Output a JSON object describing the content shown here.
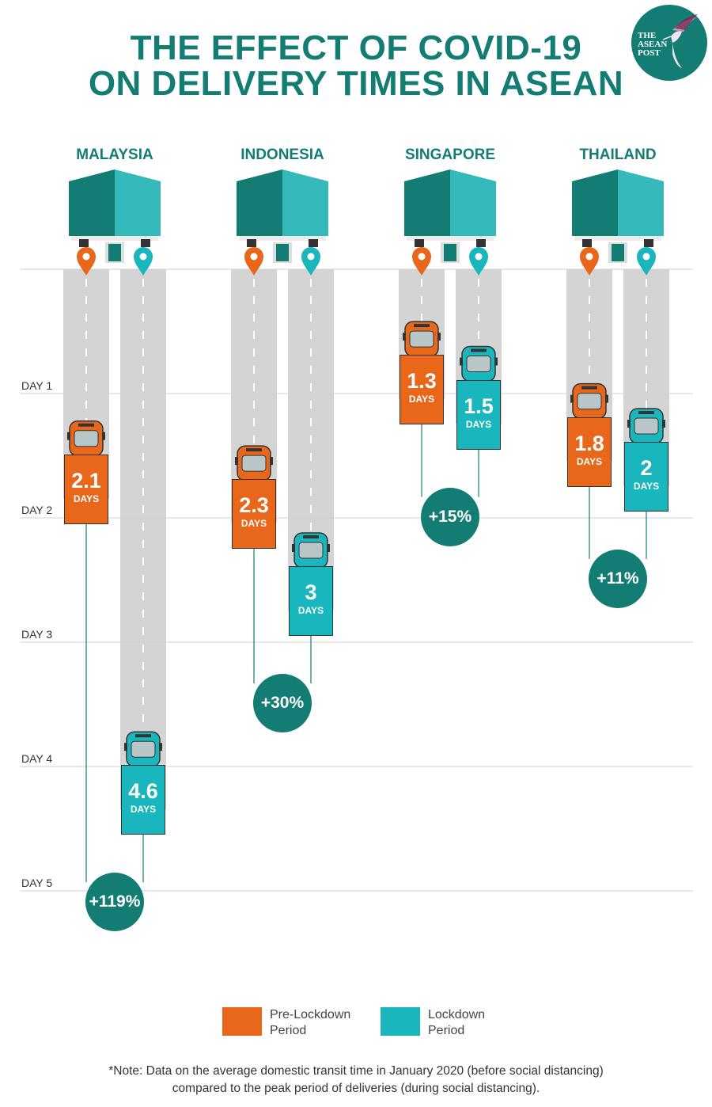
{
  "title": {
    "line1": "THE EFFECT OF COVID-19",
    "line2": "ON DELIVERY TIMES IN ASEAN"
  },
  "logo": {
    "line1": "THE",
    "line2": "ASEAN",
    "line3": "POST"
  },
  "colors": {
    "pre": "#e8671a",
    "lock": "#19b6bd",
    "dark": "#137d74",
    "road": "#d4d4d4",
    "roof_dark": "#137d74",
    "roof_light": "#35b9bb"
  },
  "chart_data": {
    "type": "bar",
    "title": "THE EFFECT OF COVID-19 ON DELIVERY TIMES IN ASEAN",
    "categories": [
      "MALAYSIA",
      "INDONESIA",
      "SINGAPORE",
      "THAILAND"
    ],
    "series": [
      {
        "name": "Pre-Lockdown Period",
        "values": [
          2.1,
          2.3,
          1.3,
          1.8
        ]
      },
      {
        "name": "Lockdown Period",
        "values": [
          4.6,
          3,
          1.5,
          2
        ]
      }
    ],
    "value_labels": {
      "pre": [
        "2.1",
        "2.3",
        "1.3",
        "1.8"
      ],
      "lock": [
        "4.6",
        "3",
        "1.5",
        "2"
      ]
    },
    "unit_label": "DAYS",
    "change_labels": [
      "+119%",
      "+30%",
      "+15%",
      "+11%"
    ],
    "y_ticks": [
      "DAY 1",
      "DAY 2",
      "DAY 3",
      "DAY 4",
      "DAY 5"
    ],
    "ylim": [
      0,
      5.5
    ],
    "orientation": "vertical-downward",
    "grid": true,
    "legend_position": "bottom"
  },
  "legend": {
    "pre_line1": "Pre-Lockdown",
    "pre_line2": "Period",
    "lock_line1": "Lockdown",
    "lock_line2": "Period"
  },
  "note": {
    "line1": "*Note: Data on the average domestic transit time in January 2020 (before social distancing)",
    "line2": "compared to the peak period of deliveries (during social distancing)."
  }
}
